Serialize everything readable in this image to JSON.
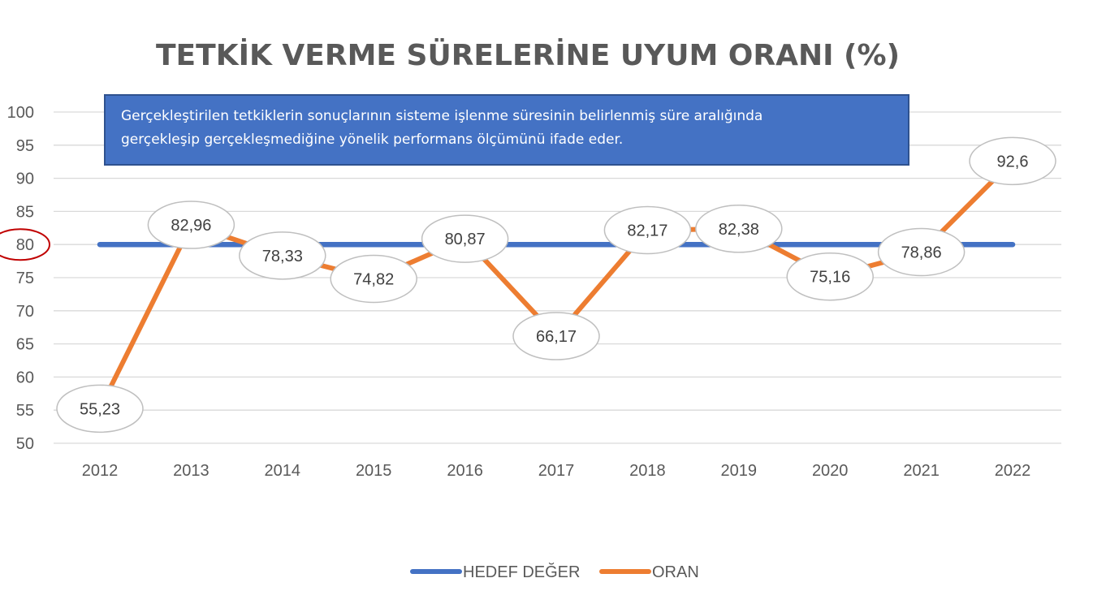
{
  "chart_data": {
    "type": "line",
    "title": "TETKİK VERME SÜRELERİNE UYUM ORANI (%)",
    "note_lines": [
      "Gerçekleştirilen tetkiklerin sonuçlarının sisteme işlenme süresinin belirlenmiş  süre aralığında",
      "gerçekleşip gerçekleşmediğine yönelik performans ölçümünü ifade eder."
    ],
    "x": [
      "2012",
      "2013",
      "2014",
      "2015",
      "2016",
      "2017",
      "2018",
      "2019",
      "2020",
      "2021",
      "2022"
    ],
    "ylim": [
      50,
      100
    ],
    "yticks": [
      "50",
      "55",
      "60",
      "65",
      "70",
      "75",
      "80",
      "85",
      "90",
      "95",
      "100"
    ],
    "highlighted_tick": "80",
    "grid": true,
    "legend_position": "bottom",
    "series": [
      {
        "name": "HEDEF DEĞER",
        "color": "#4472C4",
        "values": [
          80,
          80,
          80,
          80,
          80,
          80,
          80,
          80,
          80,
          80,
          80
        ]
      },
      {
        "name": "ORAN",
        "color": "#ED7D31",
        "values": [
          55.23,
          82.96,
          78.33,
          74.82,
          80.87,
          66.17,
          82.17,
          82.38,
          75.16,
          78.86,
          92.6
        ],
        "labels": [
          "55,23",
          "82,96",
          "78,33",
          "74,82",
          "80,87",
          "66,17",
          "82,17",
          "82,38",
          "75,16",
          "78,86",
          "92,6"
        ]
      }
    ],
    "note_fill": "#4472C4",
    "highlight_color": "#C00000"
  }
}
